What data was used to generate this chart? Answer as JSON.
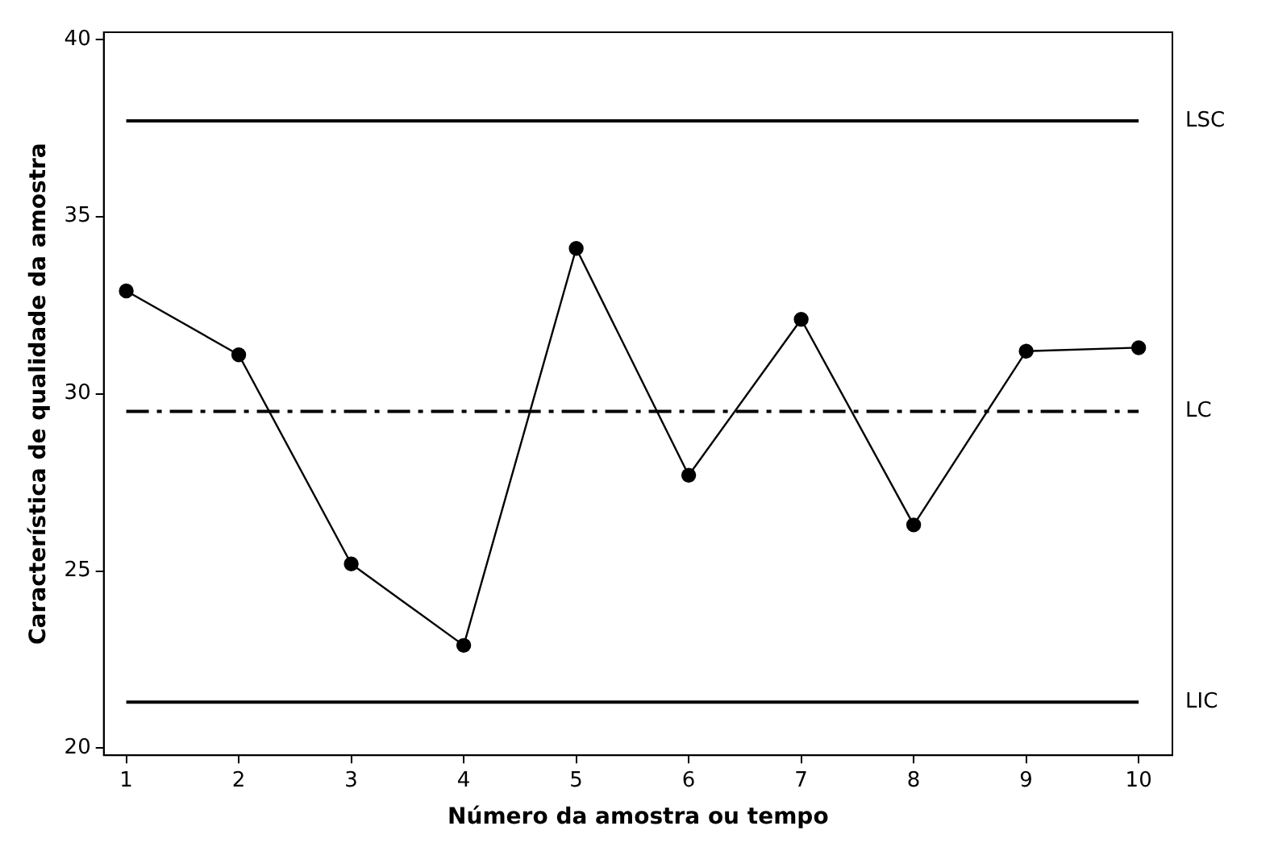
{
  "chart_data": {
    "type": "line",
    "xlabel": "Número da amostra ou tempo",
    "ylabel": "Característica de qualidade da amostra",
    "x": [
      1,
      2,
      3,
      4,
      5,
      6,
      7,
      8,
      9,
      10
    ],
    "series": [
      {
        "color": "#000000",
        "values": [
          32.9,
          31.1,
          25.2,
          22.9,
          34.1,
          27.7,
          32.1,
          26.3,
          31.2,
          31.3
        ]
      }
    ],
    "xlim": [
      0.8,
      10.3
    ],
    "xticks": [
      1,
      2,
      3,
      4,
      5,
      6,
      7,
      8,
      9,
      10
    ],
    "ylim": [
      19.8,
      40.2
    ],
    "yticks": [
      20,
      25,
      30,
      35,
      40
    ],
    "ref_lines": [
      {
        "axis": "y",
        "value": 37.7,
        "label": "LSC",
        "color": "#000000",
        "line_style": "solid"
      },
      {
        "axis": "y",
        "value": 29.5,
        "label": "LC",
        "color": "#000000",
        "line_style": "dashed"
      },
      {
        "axis": "y",
        "value": 21.3,
        "label": "LIC",
        "color": "#000000",
        "line_style": "solid"
      }
    ],
    "grid": false,
    "legend": false,
    "marker": "circle",
    "line_style": "solid"
  }
}
